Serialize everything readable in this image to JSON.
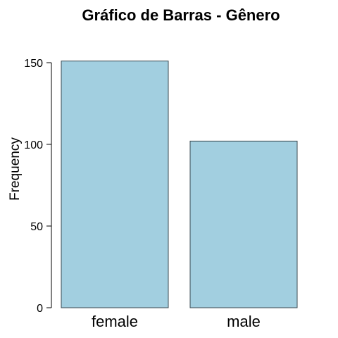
{
  "chart_data": {
    "type": "bar",
    "title": "Gráfico de Barras - Gênero",
    "xlabel": "",
    "ylabel": "Frequency",
    "categories": [
      "female",
      "male"
    ],
    "values": [
      151,
      102
    ],
    "ylim": [
      0,
      150
    ],
    "yticks": [
      "0",
      "50",
      "100",
      "150"
    ],
    "ytick_values": [
      0,
      50,
      100,
      150
    ],
    "grid": false,
    "bar_color": "#a2cfe0",
    "bar_edge_color": "#3a4a50"
  }
}
